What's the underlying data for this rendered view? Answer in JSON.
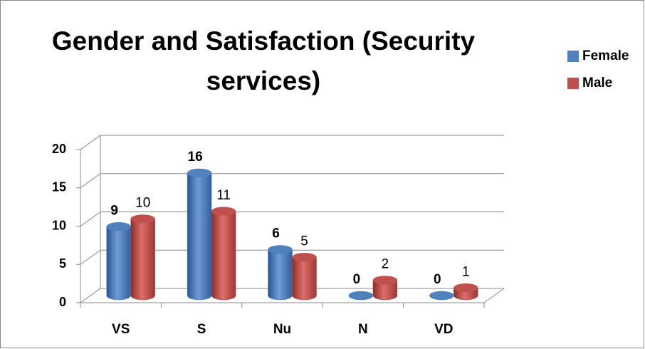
{
  "chart_data": {
    "type": "bar3d",
    "title": "Gender and Satisfaction (Security services)",
    "categories": [
      "VS",
      "S",
      "Nu",
      "N",
      "VD"
    ],
    "series": [
      {
        "name": "Female",
        "color": "#4f81bd",
        "values": [
          9,
          16,
          6,
          0,
          0
        ]
      },
      {
        "name": "Male",
        "color": "#c0504d",
        "values": [
          10,
          11,
          5,
          2,
          1
        ]
      }
    ],
    "ylim": [
      0,
      20
    ],
    "yticks": [
      0,
      5,
      10,
      15,
      20
    ],
    "grid": true,
    "legend": "right"
  }
}
